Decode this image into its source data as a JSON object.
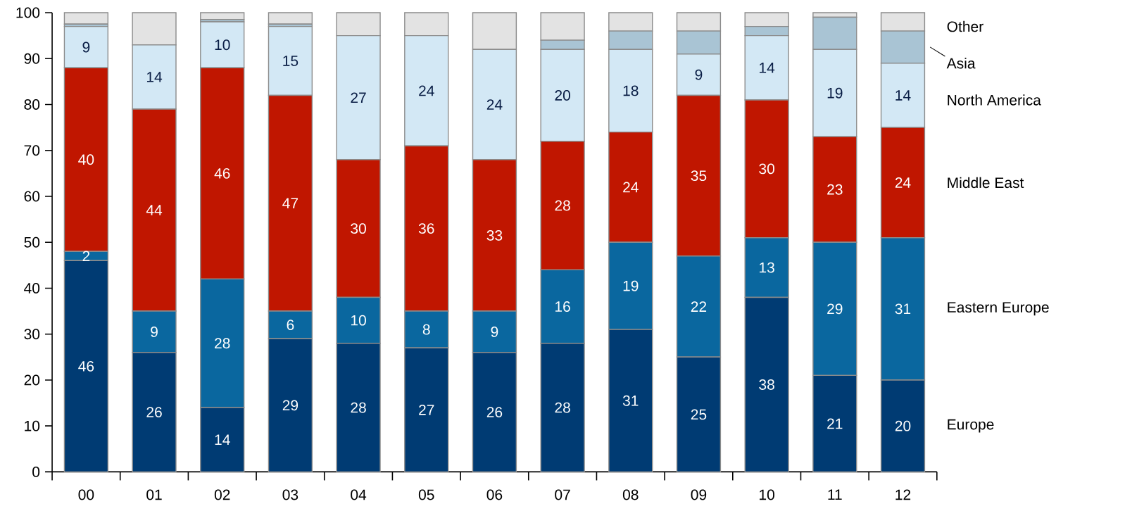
{
  "chart_data": {
    "type": "bar",
    "stacked": true,
    "legend": "right",
    "categories": [
      "00",
      "01",
      "02",
      "03",
      "04",
      "05",
      "06",
      "07",
      "08",
      "09",
      "10",
      "11",
      "12"
    ],
    "ylim": [
      0,
      100
    ],
    "yticks": [
      0,
      10,
      20,
      30,
      40,
      50,
      60,
      70,
      80,
      90,
      100
    ],
    "series": [
      {
        "name": "Europe",
        "color": "#003b73",
        "values": [
          46,
          26,
          14,
          29,
          28,
          27,
          26,
          28,
          31,
          25,
          38,
          21,
          20
        ],
        "value_labels": [
          "46",
          "26",
          "14",
          "29",
          "28",
          "27",
          "26",
          "28",
          "31",
          "25",
          "38",
          "21",
          "20"
        ]
      },
      {
        "name": "Eastern Europe",
        "color": "#0a679f",
        "values": [
          2,
          9,
          28,
          6,
          10,
          8,
          9,
          16,
          19,
          22,
          13,
          29,
          31
        ],
        "value_labels": [
          "2",
          "9",
          "28",
          "6",
          "10",
          "8",
          "9",
          "16",
          "19",
          "22",
          "13",
          "29",
          "31"
        ]
      },
      {
        "name": "Middle East",
        "color": "#c01600",
        "values": [
          40,
          44,
          46,
          47,
          30,
          36,
          33,
          28,
          24,
          35,
          30,
          23,
          24
        ],
        "value_labels": [
          "40",
          "44",
          "46",
          "47",
          "30",
          "36",
          "33",
          "28",
          "24",
          "35",
          "30",
          "23",
          "24"
        ]
      },
      {
        "name": "North America",
        "color": "#d3e8f5",
        "values": [
          9,
          14,
          10,
          15,
          27,
          24,
          24,
          20,
          18,
          9,
          14,
          19,
          14
        ],
        "value_labels": [
          "9",
          "14",
          "10",
          "15",
          "27",
          "24",
          "24",
          "20",
          "18",
          "9",
          "14",
          "19",
          "14"
        ]
      },
      {
        "name": "Asia",
        "color": "#a9c4d4",
        "values": [
          0.5,
          0,
          0.5,
          0.5,
          0,
          0,
          0,
          2,
          4,
          5,
          2,
          7,
          7
        ]
      },
      {
        "name": "Other",
        "color": "#e3e3e3",
        "values": [
          2.5,
          7,
          1.5,
          2.5,
          5,
          5,
          8,
          6,
          4,
          4,
          3,
          1,
          4
        ]
      }
    ]
  }
}
